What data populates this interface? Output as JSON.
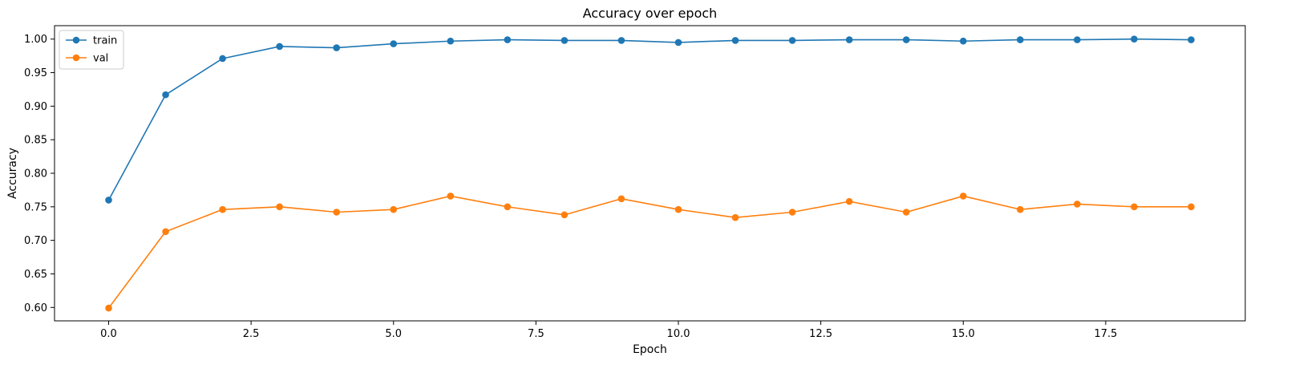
{
  "chart_data": {
    "type": "line",
    "title": "Accuracy over epoch",
    "xlabel": "Epoch",
    "ylabel": "Accuracy",
    "xlim": [
      -0.95,
      19.95
    ],
    "ylim": [
      0.58,
      1.02
    ],
    "xticks": [
      0.0,
      2.5,
      5.0,
      7.5,
      10.0,
      12.5,
      15.0,
      17.5
    ],
    "xtick_labels": [
      "0.0",
      "2.5",
      "5.0",
      "7.5",
      "10.0",
      "12.5",
      "15.0",
      "17.5"
    ],
    "yticks": [
      0.6,
      0.65,
      0.7,
      0.75,
      0.8,
      0.85,
      0.9,
      0.95,
      1.0
    ],
    "ytick_labels": [
      "0.60",
      "0.65",
      "0.70",
      "0.75",
      "0.80",
      "0.85",
      "0.90",
      "0.95",
      "1.00"
    ],
    "grid": false,
    "legend_position": "top-left",
    "x": [
      0,
      1,
      2,
      3,
      4,
      5,
      6,
      7,
      8,
      9,
      10,
      11,
      12,
      13,
      14,
      15,
      16,
      17,
      18,
      19
    ],
    "series": [
      {
        "name": "train",
        "color": "#1f77b4",
        "marker": "circle",
        "values": [
          0.76,
          0.917,
          0.971,
          0.989,
          0.987,
          0.993,
          0.997,
          0.999,
          0.998,
          0.998,
          0.995,
          0.998,
          0.998,
          0.999,
          0.999,
          0.997,
          0.999,
          0.999,
          1.0,
          0.999
        ]
      },
      {
        "name": "val",
        "color": "#ff7f0e",
        "marker": "circle",
        "values": [
          0.599,
          0.713,
          0.746,
          0.75,
          0.742,
          0.746,
          0.766,
          0.75,
          0.738,
          0.762,
          0.746,
          0.734,
          0.742,
          0.758,
          0.742,
          0.766,
          0.746,
          0.754,
          0.75,
          0.75
        ]
      }
    ]
  }
}
